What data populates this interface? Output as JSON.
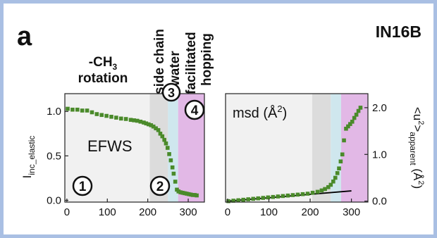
{
  "panel_letter": "a",
  "instrument": "IN16B",
  "colors": {
    "border": "#a9bfe3",
    "rotation_bg": "#f1f1f1",
    "sidechain_bg": "#dcdcdc",
    "water_bg": "#cfe7ee",
    "hopping_bg": "#e2b8e6",
    "marker": "#4a8a2a",
    "fit_line": "#000000"
  },
  "regions": {
    "rotation": {
      "label_line1": "-CH",
      "label_sub": "3",
      "label_line2": "rotation",
      "number": "1"
    },
    "sidechain": {
      "label": "side chain",
      "number": "2"
    },
    "water": {
      "label": "water",
      "number": "3"
    },
    "hopping": {
      "label_line1": "facilitated",
      "label_line2": "hopping",
      "number": "4"
    }
  },
  "chart_data": [
    {
      "type": "scatter",
      "panel": "left",
      "annotation": "EFWS",
      "ylabel_main": "I",
      "ylabel_sub": "inc_elastic",
      "xlabel": "",
      "xlim": [
        -5,
        340
      ],
      "ylim": [
        -0.02,
        1.2
      ],
      "xticks": [
        "0",
        "100",
        "200",
        "300"
      ],
      "yticks": [
        "0.0",
        "0.5",
        "1.0"
      ],
      "region_boundaries": {
        "sidechain_start": 205,
        "water_start": 250,
        "hopping_start": 275,
        "hopping_end": 340
      },
      "series": [
        {
          "x": [
            2,
            14,
            26,
            38,
            50,
            62,
            74,
            86,
            98,
            110,
            122,
            134,
            146,
            158,
            166,
            174,
            182,
            190,
            196,
            202,
            208,
            214,
            220,
            226,
            231,
            236,
            241,
            245,
            249,
            253,
            257,
            261,
            264,
            268,
            272,
            276,
            281,
            286,
            291,
            296,
            301,
            306,
            311,
            316,
            321
          ],
          "y": [
            1.03,
            1.02,
            1.02,
            1.01,
            1.01,
            0.99,
            0.97,
            0.96,
            0.95,
            0.94,
            0.93,
            0.92,
            0.915,
            0.905,
            0.9,
            0.895,
            0.885,
            0.875,
            0.865,
            0.855,
            0.845,
            0.83,
            0.81,
            0.79,
            0.75,
            0.72,
            0.68,
            0.64,
            0.59,
            0.52,
            0.45,
            0.37,
            0.3,
            0.21,
            0.12,
            0.1,
            0.09,
            0.085,
            0.08,
            0.075,
            0.07,
            0.065,
            0.06,
            0.06,
            0.055
          ]
        }
      ]
    },
    {
      "type": "scatter",
      "panel": "right",
      "annotation_main": "msd (Å",
      "annotation_sup": "2",
      "annotation_end": ")",
      "ylabel_main": "<u",
      "ylabel_sup": "2",
      "ylabel_sub": "apparent",
      "ylabel_unit": "(Å",
      "ylabel_unit_sup": "2",
      "ylabel_unit_end": ")",
      "xlabel": "",
      "xlim": [
        -5,
        340
      ],
      "ylim": [
        -0.02,
        2.3
      ],
      "xticks": [
        "0",
        "100",
        "200",
        "300"
      ],
      "yticks": [
        "0.0",
        "1.0",
        "2.0"
      ],
      "region_boundaries": {
        "sidechain_start": 205,
        "water_start": 250,
        "hopping_start": 275,
        "hopping_end": 340
      },
      "series": [
        {
          "name": "msd",
          "x": [
            2,
            14,
            26,
            38,
            50,
            62,
            74,
            86,
            98,
            110,
            122,
            134,
            146,
            158,
            170,
            182,
            194,
            206,
            218,
            228,
            236,
            244,
            250,
            256,
            261,
            266,
            270,
            274,
            278,
            282,
            287,
            292,
            297,
            302,
            307,
            312,
            317,
            322
          ],
          "y": [
            0.0,
            0.01,
            0.02,
            0.03,
            0.04,
            0.05,
            0.06,
            0.07,
            0.08,
            0.09,
            0.1,
            0.11,
            0.12,
            0.13,
            0.14,
            0.15,
            0.16,
            0.18,
            0.2,
            0.23,
            0.26,
            0.3,
            0.35,
            0.42,
            0.5,
            0.6,
            0.7,
            0.85,
            1.0,
            1.3,
            1.55,
            1.6,
            1.65,
            1.7,
            1.78,
            1.85,
            1.93,
            2.0
          ]
        }
      ],
      "fit_line": {
        "x": [
          0,
          300
        ],
        "y": [
          0.0,
          0.22
        ]
      }
    }
  ]
}
